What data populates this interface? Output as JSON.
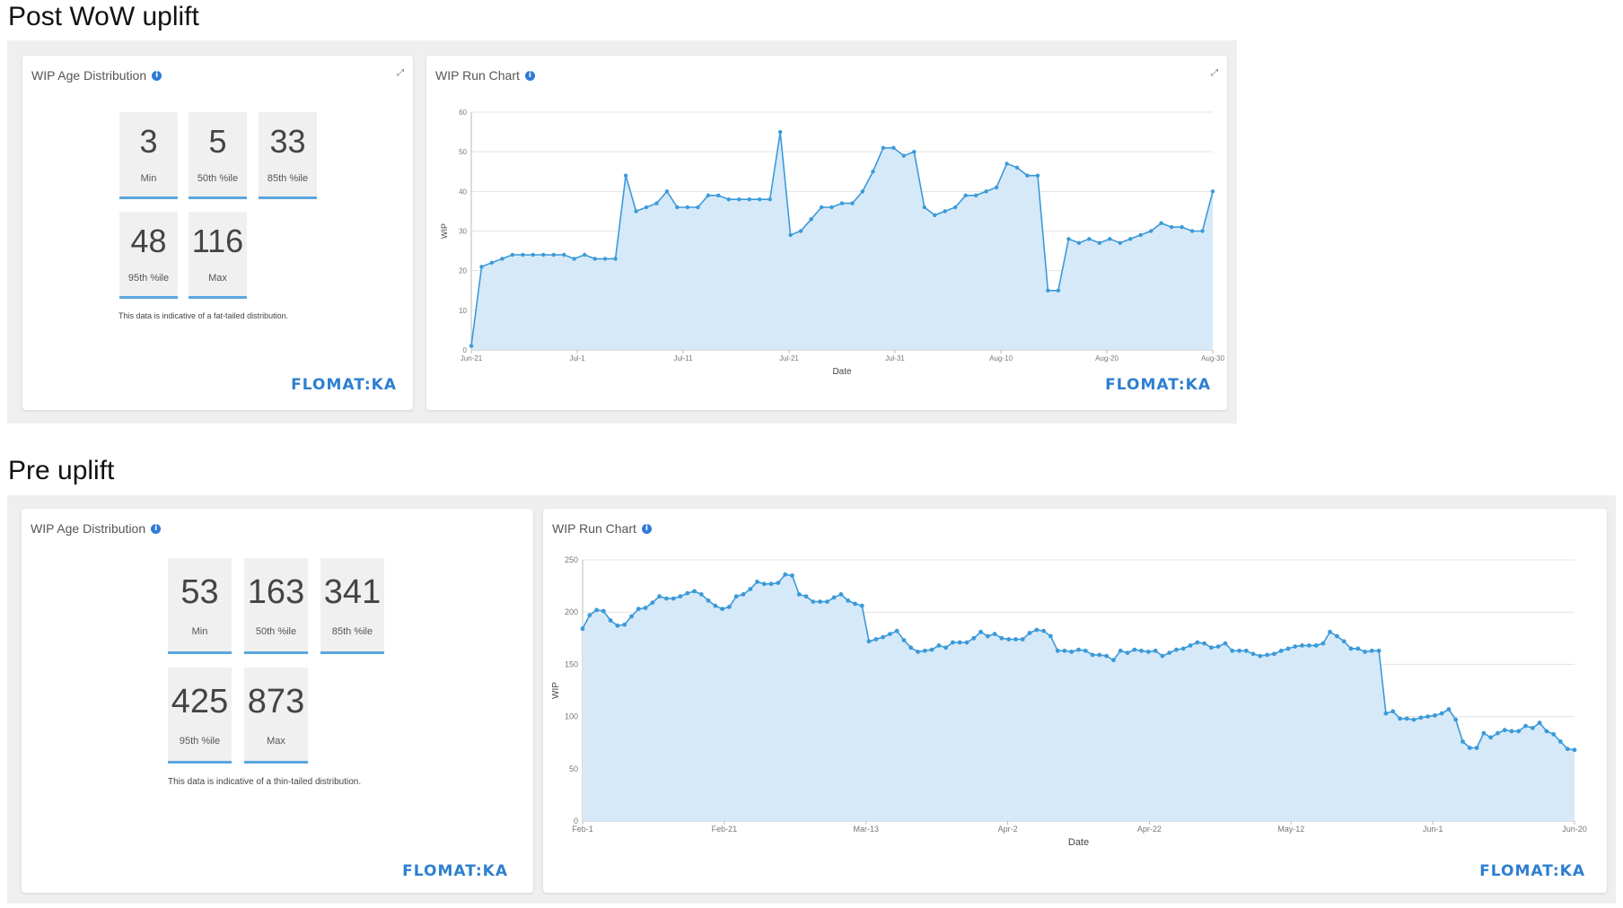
{
  "sections": [
    {
      "title": "Post WoW uplift",
      "distribution": {
        "title": "WIP Age Distribution",
        "stats": [
          {
            "value": "3",
            "label": "Min"
          },
          {
            "value": "5",
            "label": "50th %ile"
          },
          {
            "value": "33",
            "label": "85th %ile"
          },
          {
            "value": "48",
            "label": "95th %ile"
          },
          {
            "value": "116",
            "label": "Max"
          }
        ],
        "note": "This data is indicative of a fat-tailed distribution.",
        "logo": "FLOMAT:KA"
      },
      "run_chart_card": {
        "title": "WIP Run Chart",
        "logo": "FLOMAT:KA"
      }
    },
    {
      "title": "Pre uplift",
      "distribution": {
        "title": "WIP Age Distribution",
        "stats": [
          {
            "value": "53",
            "label": "Min"
          },
          {
            "value": "163",
            "label": "50th %ile"
          },
          {
            "value": "341",
            "label": "85th %ile"
          },
          {
            "value": "425",
            "label": "95th %ile"
          },
          {
            "value": "873",
            "label": "Max"
          }
        ],
        "note": "This data is indicative of a thin-tailed distribution.",
        "logo": "FLOMAT:KA"
      },
      "run_chart_card": {
        "title": "WIP Run Chart",
        "logo": "FLOMAT:KA"
      }
    }
  ],
  "chart_data": [
    {
      "type": "area",
      "xlabel": "Date",
      "ylabel": "WIP",
      "ylim": [
        0,
        60
      ],
      "yticks": [
        0,
        10,
        20,
        30,
        40,
        50,
        60
      ],
      "xticks": [
        "Jun-21",
        "Jul-1",
        "Jul-11",
        "Jul-21",
        "Jul-31",
        "Aug-10",
        "Aug-20",
        "Aug-30"
      ],
      "grid": true,
      "values": [
        1,
        21,
        22,
        23,
        24,
        24,
        24,
        24,
        24,
        24,
        23,
        24,
        23,
        23,
        23,
        44,
        35,
        36,
        37,
        40,
        36,
        36,
        36,
        39,
        39,
        38,
        38,
        38,
        38,
        38,
        55,
        29,
        30,
        33,
        36,
        36,
        37,
        37,
        40,
        45,
        51,
        51,
        49,
        50,
        36,
        34,
        35,
        36,
        39,
        39,
        40,
        41,
        47,
        46,
        44,
        44,
        15,
        15,
        28,
        27,
        28,
        27,
        28,
        27,
        28,
        29,
        30,
        32,
        31,
        31,
        30,
        30,
        40
      ]
    },
    {
      "type": "area",
      "xlabel": "Date",
      "ylabel": "WIP",
      "ylim": [
        0,
        250
      ],
      "yticks": [
        0,
        50,
        100,
        150,
        200,
        250
      ],
      "xticks": [
        "Feb-1",
        "Feb-21",
        "Mar-13",
        "Apr-2",
        "Apr-22",
        "May-12",
        "Jun-1",
        "Jun-20"
      ],
      "grid": true,
      "values": [
        184,
        197,
        202,
        201,
        192,
        187,
        188,
        196,
        203,
        204,
        209,
        215,
        213,
        213,
        215,
        218,
        220,
        217,
        211,
        206,
        203,
        205,
        215,
        217,
        222,
        229,
        227,
        227,
        228,
        236,
        235,
        217,
        215,
        210,
        210,
        210,
        214,
        217,
        211,
        208,
        206,
        172,
        174,
        176,
        179,
        182,
        173,
        166,
        162,
        163,
        164,
        168,
        166,
        171,
        171,
        171,
        175,
        181,
        177,
        179,
        175,
        174,
        174,
        174,
        180,
        183,
        182,
        177,
        163,
        163,
        162,
        164,
        163,
        159,
        159,
        158,
        154,
        163,
        161,
        164,
        163,
        162,
        163,
        158,
        161,
        164,
        165,
        168,
        171,
        170,
        166,
        167,
        170,
        163,
        163,
        163,
        160,
        158,
        159,
        160,
        163,
        165,
        167,
        168,
        168,
        168,
        170,
        181,
        177,
        172,
        165,
        165,
        162,
        163,
        163,
        103,
        105,
        98,
        98,
        97,
        99,
        100,
        101,
        103,
        107,
        97,
        76,
        70,
        70,
        84,
        80,
        84,
        87,
        86,
        86,
        91,
        89,
        94,
        86,
        83,
        76,
        69,
        68
      ]
    }
  ]
}
